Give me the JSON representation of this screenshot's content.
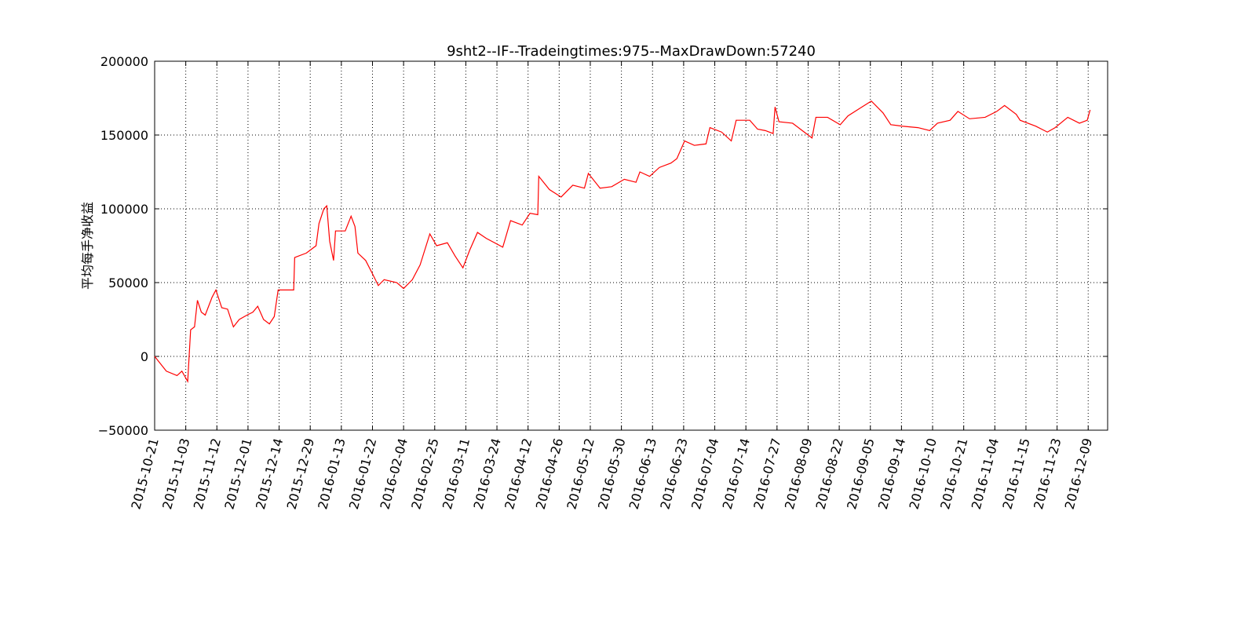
{
  "chart_data": {
    "type": "line",
    "title": "9sht2--IF--Tradeingtimes:975--MaxDrawDown:57240",
    "y_label": "平均每手净收益",
    "color": "#ff0000",
    "grid": true,
    "x": [
      0,
      6,
      12,
      23,
      28,
      34,
      37,
      41,
      44,
      48,
      52,
      59,
      63,
      69,
      75,
      81,
      87,
      95,
      101,
      106,
      112,
      118,
      123,
      127,
      136,
      143,
      144,
      156,
      160,
      166,
      169,
      174,
      177,
      180,
      184,
      186,
      196,
      202,
      206,
      209,
      217,
      224,
      230,
      236,
      249,
      256,
      265,
      273,
      283,
      290,
      301,
      309,
      317,
      324,
      332,
      341,
      358,
      366,
      378,
      386,
      394,
      395,
      406,
      418,
      430,
      442,
      446,
      458,
      470,
      483,
      495,
      499,
      509,
      519,
      531,
      537,
      545,
      555,
      567,
      571,
      583,
      593,
      598,
      612,
      620,
      628,
      636,
      638,
      642,
      656,
      664,
      676,
      680,
      692,
      705,
      713,
      725,
      737,
      749,
      757,
      769,
      785,
      797,
      805,
      818,
      826,
      838,
      854,
      866,
      874,
      886,
      890,
      906,
      918,
      926,
      939,
      951,
      959,
      962
    ],
    "values": [
      0,
      -5000,
      -10000,
      -13000,
      -10000,
      -17000,
      18000,
      20000,
      38000,
      30000,
      28000,
      40000,
      45000,
      33000,
      32000,
      20000,
      25000,
      28000,
      30000,
      34000,
      25000,
      22000,
      27000,
      45000,
      45000,
      45000,
      67000,
      70000,
      72000,
      75000,
      90000,
      100000,
      102000,
      78000,
      65000,
      85000,
      85000,
      95000,
      88000,
      70000,
      65000,
      56000,
      48000,
      52000,
      50000,
      46000,
      52000,
      62000,
      83000,
      75000,
      77000,
      68000,
      60000,
      72000,
      84000,
      80000,
      74000,
      92000,
      89000,
      97000,
      96000,
      122000,
      113000,
      108000,
      116000,
      114000,
      124000,
      114000,
      115000,
      120000,
      118000,
      125000,
      122000,
      128000,
      131000,
      134000,
      146000,
      143000,
      144000,
      155000,
      152000,
      146000,
      160000,
      160000,
      154000,
      153000,
      151000,
      169000,
      159000,
      158000,
      154000,
      148000,
      162000,
      162000,
      157000,
      163000,
      168000,
      173000,
      165000,
      157000,
      156000,
      155000,
      153000,
      158000,
      160000,
      166000,
      161000,
      162000,
      166000,
      170000,
      164000,
      160000,
      156000,
      152000,
      155000,
      162000,
      158000,
      160000,
      167000
    ],
    "xlim": [
      0,
      980
    ],
    "xticks": [
      {
        "value": 0,
        "label": "2015-10-21"
      },
      {
        "value": 32,
        "label": "2015-11-03"
      },
      {
        "value": 64,
        "label": "2015-11-12"
      },
      {
        "value": 96,
        "label": "2015-12-01"
      },
      {
        "value": 128,
        "label": "2015-12-14"
      },
      {
        "value": 160,
        "label": "2015-12-29"
      },
      {
        "value": 192,
        "label": "2016-01-13"
      },
      {
        "value": 224,
        "label": "2016-01-22"
      },
      {
        "value": 256,
        "label": "2016-02-04"
      },
      {
        "value": 288,
        "label": "2016-02-25"
      },
      {
        "value": 320,
        "label": "2016-03-11"
      },
      {
        "value": 352,
        "label": "2016-03-24"
      },
      {
        "value": 384,
        "label": "2016-04-12"
      },
      {
        "value": 416,
        "label": "2016-04-26"
      },
      {
        "value": 448,
        "label": "2016-05-12"
      },
      {
        "value": 480,
        "label": "2016-05-30"
      },
      {
        "value": 512,
        "label": "2016-06-13"
      },
      {
        "value": 544,
        "label": "2016-06-23"
      },
      {
        "value": 576,
        "label": "2016-07-04"
      },
      {
        "value": 608,
        "label": "2016-07-14"
      },
      {
        "value": 640,
        "label": "2016-07-27"
      },
      {
        "value": 672,
        "label": "2016-08-09"
      },
      {
        "value": 704,
        "label": "2016-08-22"
      },
      {
        "value": 736,
        "label": "2016-09-05"
      },
      {
        "value": 768,
        "label": "2016-09-14"
      },
      {
        "value": 800,
        "label": "2016-10-10"
      },
      {
        "value": 832,
        "label": "2016-10-21"
      },
      {
        "value": 864,
        "label": "2016-11-04"
      },
      {
        "value": 896,
        "label": "2016-11-15"
      },
      {
        "value": 928,
        "label": "2016-11-23"
      },
      {
        "value": 960,
        "label": "2016-12-09"
      }
    ],
    "ylim": [
      -50000,
      200000
    ],
    "yticks": [
      {
        "value": -50000,
        "label": "−50000"
      },
      0,
      50000,
      100000,
      150000,
      200000
    ]
  }
}
